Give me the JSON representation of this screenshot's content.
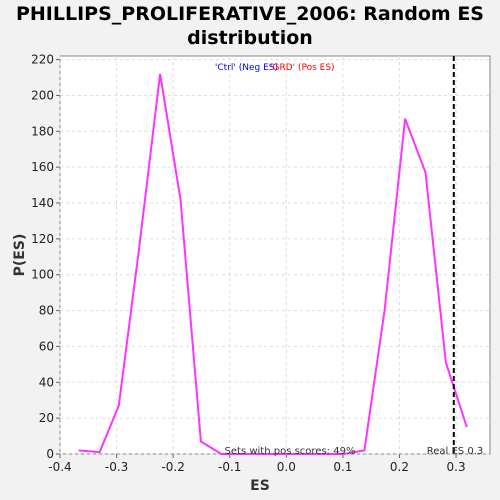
{
  "chart_data": {
    "type": "line",
    "title_line1": "PHILLIPS_PROLIFERATIVE_2006: Random ES",
    "title_line2": "distribution",
    "xlabel": "ES",
    "ylabel": "P(ES)",
    "xlim": [
      -0.4,
      0.36
    ],
    "ylim": [
      0,
      222
    ],
    "xticks": [
      -0.4,
      -0.3,
      -0.2,
      -0.1,
      0.0,
      0.1,
      0.2,
      0.3
    ],
    "xtick_labels": [
      "-0.4",
      "-0.3",
      "-0.2",
      "-0.1",
      "0.0",
      "0.1",
      "0.2",
      "0.3"
    ],
    "yticks": [
      0,
      20,
      40,
      60,
      80,
      100,
      120,
      140,
      160,
      180,
      200,
      220
    ],
    "ytick_labels": [
      "0",
      "20",
      "40",
      "60",
      "80",
      "100",
      "120",
      "140",
      "160",
      "180",
      "200",
      "220"
    ],
    "grid": true,
    "legend": {
      "placement": "top-center",
      "neg_label": "'Ctrl' (Neg ES)",
      "pos_label": "'GRD' (Pos ES)",
      "neg_color": "#0000ff",
      "pos_color": "#ff0000"
    },
    "series": [
      {
        "color": "#ff33ff",
        "x": [
          -0.367,
          -0.33,
          -0.296,
          -0.26,
          -0.223,
          -0.187,
          -0.151,
          -0.115,
          -0.079,
          0.05,
          0.102,
          0.138,
          0.174,
          0.21,
          0.246,
          0.282,
          0.319
        ],
        "values": [
          2,
          1,
          27,
          115,
          212,
          142,
          7,
          0,
          0,
          0,
          0,
          2,
          81,
          187,
          157,
          51,
          15
        ]
      }
    ],
    "vline": {
      "x": 0.296,
      "style": "dashed",
      "color": "#000000",
      "label": "Real ES 0.3"
    },
    "annotation": "Sets with pos scores: 49%"
  }
}
